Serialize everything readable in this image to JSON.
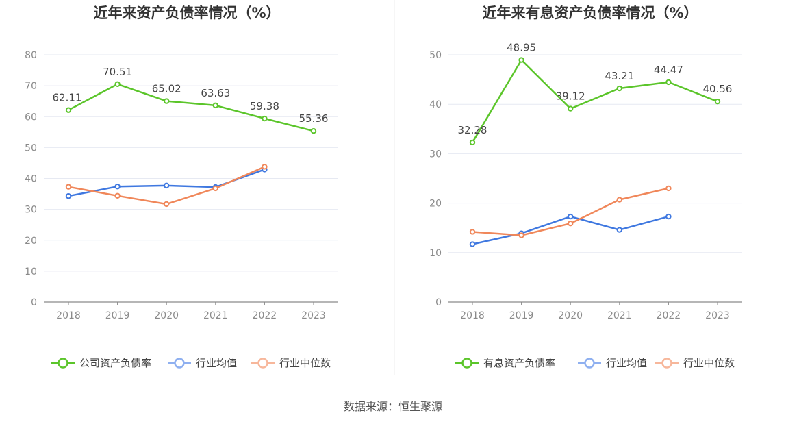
{
  "source": "数据来源：恒生聚源",
  "colors": {
    "company": "#5bc52a",
    "avg": "#3f78e0",
    "median": "#f0875a",
    "axis": "#8a8a8a",
    "grid": "#e6e9f2"
  },
  "chart_data": [
    {
      "type": "line",
      "title": "近年来资产负债率情况（%）",
      "categories": [
        "2018",
        "2019",
        "2020",
        "2021",
        "2022",
        "2023"
      ],
      "ylim": [
        0,
        80
      ],
      "yticks": [
        0,
        10,
        20,
        30,
        40,
        50,
        60,
        70,
        80
      ],
      "legend_position": "bottom",
      "series": [
        {
          "name": "公司资产负债率",
          "color": "#5bc52a",
          "values": [
            62.11,
            70.51,
            65.02,
            63.63,
            59.38,
            55.36
          ],
          "labels": [
            "62.11",
            "70.51",
            "65.02",
            "63.63",
            "59.38",
            "55.36"
          ]
        },
        {
          "name": "行业均值",
          "color": "#3f78e0",
          "values": [
            34.3,
            37.4,
            37.7,
            37.2,
            42.9,
            null
          ]
        },
        {
          "name": "行业中位数",
          "color": "#f0875a",
          "values": [
            37.3,
            34.4,
            31.7,
            36.8,
            43.8,
            null
          ]
        }
      ]
    },
    {
      "type": "line",
      "title": "近年来有息资产负债率情况（%）",
      "categories": [
        "2018",
        "2019",
        "2020",
        "2021",
        "2022",
        "2023"
      ],
      "ylim": [
        0,
        50
      ],
      "yticks": [
        0,
        10,
        20,
        30,
        40,
        50
      ],
      "legend_position": "bottom",
      "series": [
        {
          "name": "有息资产负债率",
          "color": "#5bc52a",
          "values": [
            32.28,
            48.95,
            39.12,
            43.21,
            44.47,
            40.56
          ],
          "labels": [
            "32.28",
            "48.95",
            "39.12",
            "43.21",
            "44.47",
            "40.56"
          ]
        },
        {
          "name": "行业均值",
          "color": "#3f78e0",
          "values": [
            11.7,
            13.9,
            17.3,
            14.6,
            17.3,
            null
          ]
        },
        {
          "name": "行业中位数",
          "color": "#f0875a",
          "values": [
            14.2,
            13.5,
            15.9,
            20.7,
            23.0,
            null
          ]
        }
      ]
    }
  ]
}
